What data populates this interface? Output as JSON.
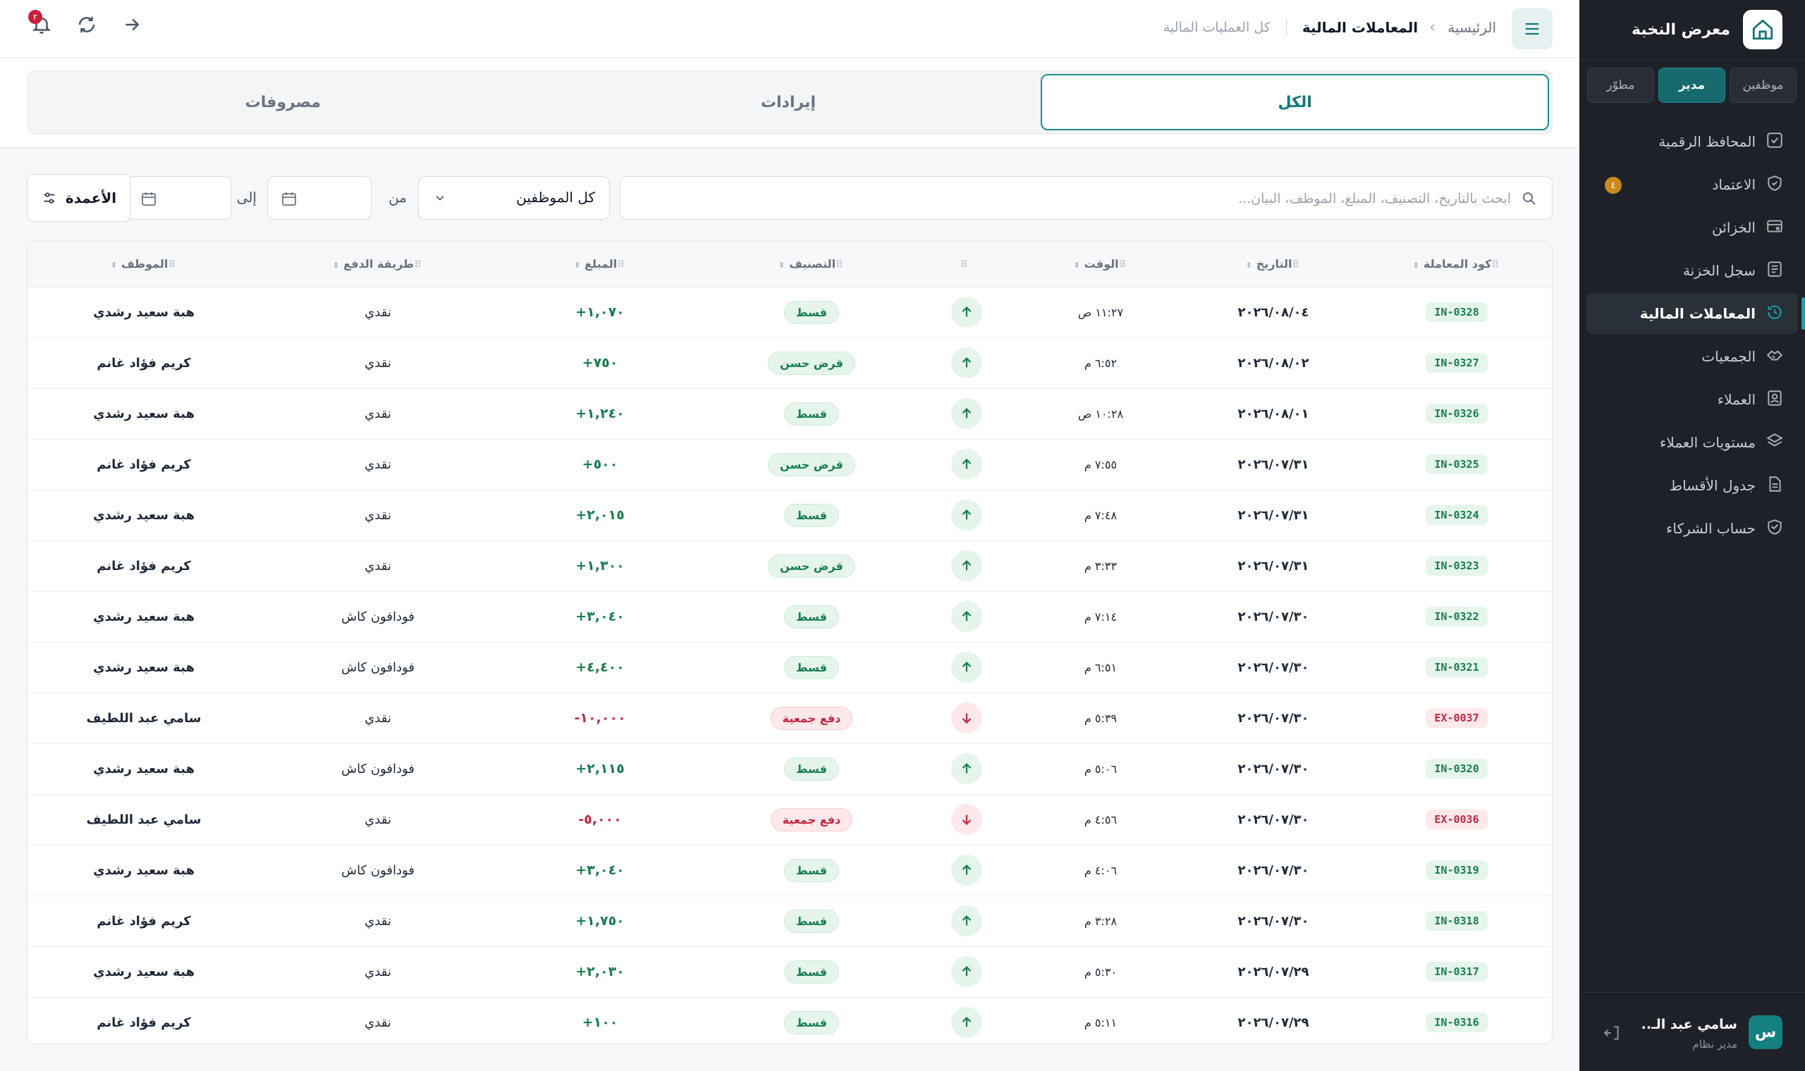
{
  "sidebar": {
    "brand": "معرض النخبة",
    "roles": [
      "موظفين",
      "مدير",
      "مطوّر"
    ],
    "active_role": 1,
    "items": [
      {
        "label": "المحافظ الرقمية",
        "icon": "wallet-check-icon"
      },
      {
        "label": "الاعتماد",
        "icon": "shield-check-icon",
        "badge": "٤"
      },
      {
        "label": "الخزائن",
        "icon": "safe-icon"
      },
      {
        "label": "سجل الخزنة",
        "icon": "ledger-icon"
      },
      {
        "label": "المعاملات المالية",
        "icon": "history-icon",
        "active": true
      },
      {
        "label": "الجمعيات",
        "icon": "handshake-icon"
      },
      {
        "label": "العملاء",
        "icon": "contact-card-icon"
      },
      {
        "label": "مستويات العملاء",
        "icon": "layers-icon"
      },
      {
        "label": "جدول الأقساط",
        "icon": "document-icon"
      },
      {
        "label": "حساب الشركاء",
        "icon": "partners-icon"
      }
    ],
    "user": {
      "initial": "س",
      "name": "سامي عبد الـ..",
      "role": "مدير نظام"
    }
  },
  "header": {
    "crumb_home": "الرئيسية",
    "crumb_current": "المعاملات المالية",
    "crumb_sub": "كل العمليات المالية",
    "notif_count": "٢"
  },
  "tabs": [
    "الكل",
    "إيرادات",
    "مصروفات"
  ],
  "active_tab": 0,
  "filters": {
    "search_placeholder": "ابحث بالتاريخ، التصنيف، المبلغ، الموظف، البيان...",
    "employee_select": "كل الموظفين",
    "from_label": "من",
    "to_label": "إلى",
    "columns_button": "الأعمدة"
  },
  "table": {
    "columns": [
      "كود المعاملة",
      "التاريخ",
      "الوقت",
      "",
      "التصنيف",
      "المبلغ",
      "طريقة الدفع",
      "الموظف"
    ],
    "rows": [
      {
        "code": "IN-0328",
        "date": "٢٠٢٦/٠٨/٠٤",
        "time": "١١:٢٧ ص",
        "dir": "in",
        "category": "قسط",
        "amount": "+١,٠٧٠",
        "method": "نقدي",
        "employee": "هبة سعيد رشدي"
      },
      {
        "code": "IN-0327",
        "date": "٢٠٢٦/٠٨/٠٢",
        "time": "٦:٥٢ م",
        "dir": "in",
        "category": "قرض حسن",
        "amount": "+٧٥٠",
        "method": "نقدي",
        "employee": "كريم فؤاد غانم"
      },
      {
        "code": "IN-0326",
        "date": "٢٠٢٦/٠٨/٠١",
        "time": "١٠:٢٨ ص",
        "dir": "in",
        "category": "قسط",
        "amount": "+١,٢٤٠",
        "method": "نقدي",
        "employee": "هبة سعيد رشدي"
      },
      {
        "code": "IN-0325",
        "date": "٢٠٢٦/٠٧/٣١",
        "time": "٧:٥٥ م",
        "dir": "in",
        "category": "قرض حسن",
        "amount": "+٥٠٠",
        "method": "نقدي",
        "employee": "كريم فؤاد غانم"
      },
      {
        "code": "IN-0324",
        "date": "٢٠٢٦/٠٧/٣١",
        "time": "٧:٤٨ م",
        "dir": "in",
        "category": "قسط",
        "amount": "+٢,٠١٥",
        "method": "نقدي",
        "employee": "هبة سعيد رشدي"
      },
      {
        "code": "IN-0323",
        "date": "٢٠٢٦/٠٧/٣١",
        "time": "٣:٣٣ م",
        "dir": "in",
        "category": "قرض حسن",
        "amount": "+١,٣٠٠",
        "method": "نقدي",
        "employee": "كريم فؤاد غانم"
      },
      {
        "code": "IN-0322",
        "date": "٢٠٢٦/٠٧/٣٠",
        "time": "٧:١٤ م",
        "dir": "in",
        "category": "قسط",
        "amount": "+٣,٠٤٠",
        "method": "فودافون كاش",
        "employee": "هبة سعيد رشدي"
      },
      {
        "code": "IN-0321",
        "date": "٢٠٢٦/٠٧/٣٠",
        "time": "٦:٥١ م",
        "dir": "in",
        "category": "قسط",
        "amount": "+٤,٤٠٠",
        "method": "فودافون كاش",
        "employee": "هبة سعيد رشدي"
      },
      {
        "code": "EX-0037",
        "date": "٢٠٢٦/٠٧/٣٠",
        "time": "٥:٣٩ م",
        "dir": "ex",
        "category": "دفع جمعية",
        "amount": "-١٠,٠٠٠",
        "method": "نقدي",
        "employee": "سامي عبد اللطيف"
      },
      {
        "code": "IN-0320",
        "date": "٢٠٢٦/٠٧/٣٠",
        "time": "٥:٠٦ م",
        "dir": "in",
        "category": "قسط",
        "amount": "+٢,١١٥",
        "method": "فودافون كاش",
        "employee": "هبة سعيد رشدي"
      },
      {
        "code": "EX-0036",
        "date": "٢٠٢٦/٠٧/٣٠",
        "time": "٤:٥٦ م",
        "dir": "ex",
        "category": "دفع جمعية",
        "amount": "-٥,٠٠٠",
        "method": "نقدي",
        "employee": "سامي عبد اللطيف"
      },
      {
        "code": "IN-0319",
        "date": "٢٠٢٦/٠٧/٣٠",
        "time": "٤:٠٦ م",
        "dir": "in",
        "category": "قسط",
        "amount": "+٣,٠٤٠",
        "method": "فودافون كاش",
        "employee": "هبة سعيد رشدي"
      },
      {
        "code": "IN-0318",
        "date": "٢٠٢٦/٠٧/٣٠",
        "time": "٣:٢٨ م",
        "dir": "in",
        "category": "قسط",
        "amount": "+١,٧٥٠",
        "method": "نقدي",
        "employee": "كريم فؤاد غانم"
      },
      {
        "code": "IN-0317",
        "date": "٢٠٢٦/٠٧/٢٩",
        "time": "٥:٣٠ م",
        "dir": "in",
        "category": "قسط",
        "amount": "+٢,٠٣٠",
        "method": "نقدي",
        "employee": "هبة سعيد رشدي"
      },
      {
        "code": "IN-0316",
        "date": "٢٠٢٦/٠٧/٢٩",
        "time": "٥:١١ م",
        "dir": "in",
        "category": "قسط",
        "amount": "+١٠٠",
        "method": "نقدي",
        "employee": "كريم فؤاد غانم"
      }
    ]
  },
  "colors": {
    "accent": "#1e8c8c",
    "income": "#1a7f4e",
    "expense": "#c42845",
    "sidebar_bg": "#1f2128"
  }
}
